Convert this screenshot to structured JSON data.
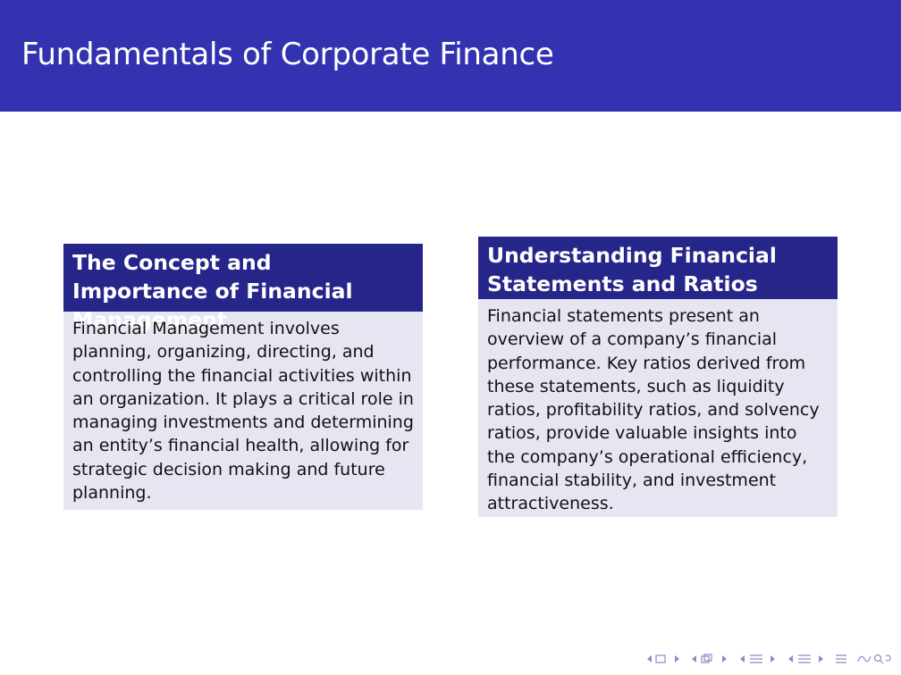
{
  "slide": {
    "title": "Fundamentals of Corporate Finance"
  },
  "blocks": [
    {
      "heading": "The Concept and Importance of Financial Management",
      "body": "Financial Management involves planning, organizing, directing, and controlling the financial activities within an organization. It plays a critical role in managing investments and determining an entity’s financial health, allowing for strategic decision making and future planning."
    },
    {
      "heading": "Understanding Financial Statements and Ratios",
      "body": "Financial statements present an overview of a company’s financial performance. Key ratios derived from these statements, such as liquidity ratios, profitability ratios, and solvency ratios, provide valuable insights into the company’s operational efficiency, financial stability, and investment attractiveness."
    }
  ],
  "nav": {
    "icons": [
      "nav-first-icon",
      "nav-frame-icon",
      "nav-section-icon",
      "nav-subsection-icon",
      "nav-align-icon",
      "nav-search-icon"
    ]
  },
  "colors": {
    "header_bg": "#3333b2",
    "block_head_bg": "#26268a",
    "block_body_bg": "#e6e6f2"
  }
}
